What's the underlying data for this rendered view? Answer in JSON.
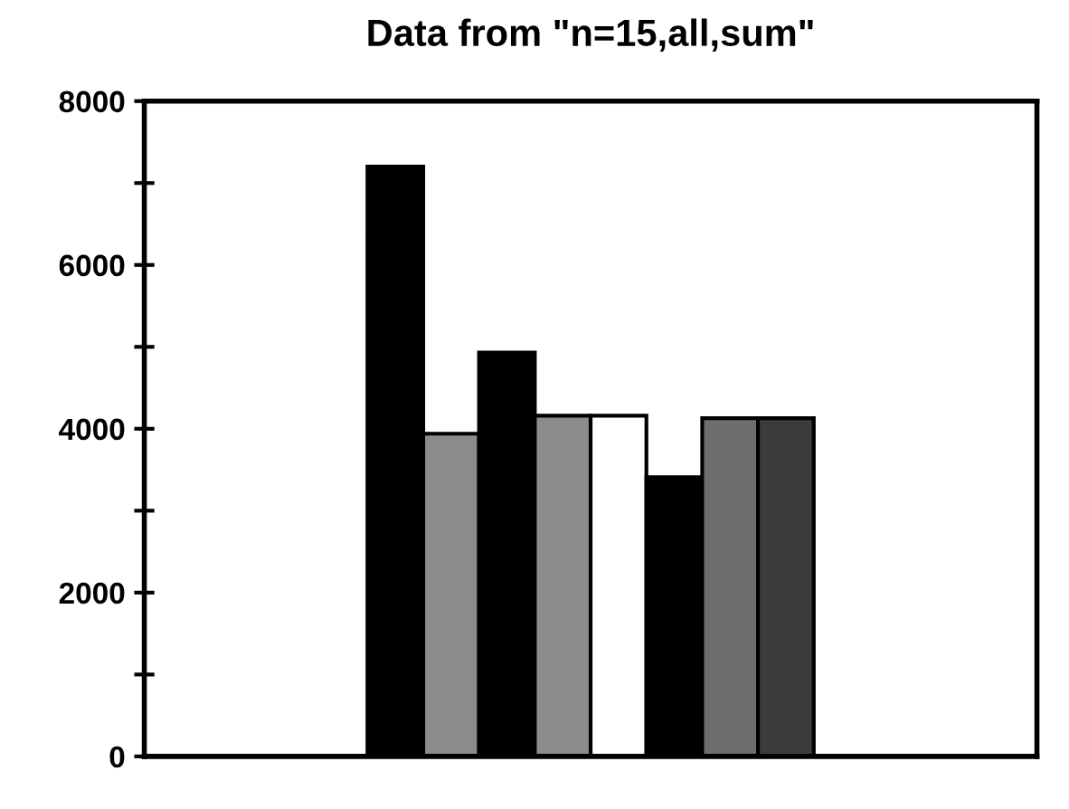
{
  "chart_data": {
    "type": "bar",
    "title": "Data from \"n=15,all,sum\"",
    "categories": [
      null,
      null,
      null,
      null,
      null,
      null,
      null,
      null,
      null,
      null,
      null,
      null,
      null,
      null,
      null,
      null
    ],
    "values": [
      null,
      null,
      null,
      null,
      7200,
      3940,
      4930,
      4160,
      4160,
      3410,
      4130,
      4130,
      null,
      null,
      null,
      null
    ],
    "colors": [
      "#000000",
      "#000000",
      "#000000",
      "#000000",
      "#000000",
      "#8c8c8c",
      "#000000",
      "#8c8c8c",
      "#ffffff",
      "#000000",
      "#6e6e6e",
      "#3c3c3c",
      "#000000",
      "#000000",
      "#000000",
      "#000000"
    ],
    "ylim": [
      0,
      8000
    ],
    "yticks": [
      0,
      {
        "value": 1000,
        "label": null
      },
      2000,
      {
        "value": 3000,
        "label": null
      },
      4000,
      {
        "value": 5000,
        "label": null
      },
      6000,
      {
        "value": 7000,
        "label": null
      },
      8000
    ],
    "grid": false,
    "legend": false
  }
}
